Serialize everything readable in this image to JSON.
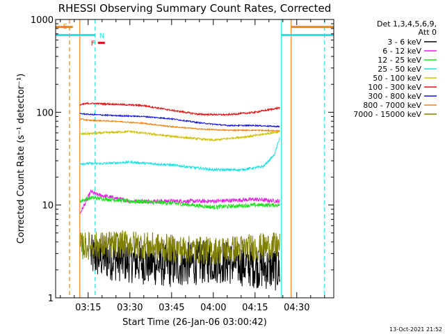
{
  "chart_data": {
    "type": "line",
    "title": "RHESSI Observing Summary Count Rates, Corrected",
    "xlabel": "Start Time (26-Jan-06 03:00:42)",
    "ylabel": "Corrected Count Rate (s⁻¹ detector⁻¹)",
    "y_scale": "log",
    "ylim": [
      1,
      1000
    ],
    "xlim_minutes": [
      3.3,
      103.3
    ],
    "y_tick_labels": [
      {
        "value": 1,
        "label": "1"
      },
      {
        "value": 10,
        "label": "10"
      },
      {
        "value": 100,
        "label": "100"
      },
      {
        "value": 1000,
        "label": "1000"
      }
    ],
    "x_tick_labels": [
      {
        "minute": 15,
        "label": "03:15"
      },
      {
        "minute": 30,
        "label": "03:30"
      },
      {
        "minute": 45,
        "label": "03:45"
      },
      {
        "minute": 60,
        "label": "04:00"
      },
      {
        "minute": 75,
        "label": "04:15"
      },
      {
        "minute": 90,
        "label": "04:30"
      }
    ],
    "legend": {
      "header": [
        "Det 1,3,4,5,6,9,",
        "Att 0"
      ],
      "placement": "right",
      "items": [
        {
          "label": "3 - 6 keV",
          "color": "#000000"
        },
        {
          "label": "6 - 12 keV",
          "color": "#e020e0"
        },
        {
          "label": "12 - 25 keV",
          "color": "#20e020"
        },
        {
          "label": "25 - 50 keV",
          "color": "#20e0e0"
        },
        {
          "label": "50 - 100 keV",
          "color": "#d0c000"
        },
        {
          "label": "100 - 300 keV",
          "color": "#e01010"
        },
        {
          "label": "300 - 800 keV",
          "color": "#1010e0"
        },
        {
          "label": "800 - 7000 keV",
          "color": "#f08010"
        },
        {
          "label": "7000 - 15000 keV",
          "color": "#808000"
        }
      ]
    },
    "series": [
      {
        "name": "3 - 6 keV",
        "color": "#000000",
        "noise": 0.55,
        "x": [
          16,
          30,
          45,
          60,
          75,
          84
        ],
        "y": [
          2.8,
          2.5,
          2.2,
          2.5,
          2.2,
          2.0
        ]
      },
      {
        "name": "6 - 12 keV",
        "color": "#e020e0",
        "noise": 0.05,
        "x": [
          12,
          16,
          18,
          30,
          45,
          60,
          75,
          84
        ],
        "y": [
          8,
          14,
          13,
          11,
          11,
          11,
          11.5,
          11
        ]
      },
      {
        "name": "12 - 25 keV",
        "color": "#20e020",
        "noise": 0.05,
        "x": [
          12,
          16,
          30,
          45,
          60,
          75,
          84
        ],
        "y": [
          11,
          12,
          11,
          10.5,
          9.5,
          10,
          10
        ]
      },
      {
        "name": "25 - 50 keV",
        "color": "#20e0e0",
        "noise": 0.03,
        "x": [
          12,
          20,
          30,
          45,
          60,
          70,
          78,
          82,
          84
        ],
        "y": [
          28,
          28,
          29,
          27,
          24,
          24,
          26,
          35,
          55
        ]
      },
      {
        "name": "50 - 100 keV",
        "color": "#d0c000",
        "noise": 0.025,
        "x": [
          12,
          20,
          30,
          45,
          60,
          75,
          84
        ],
        "y": [
          58,
          60,
          62,
          55,
          50,
          56,
          62
        ]
      },
      {
        "name": "100 - 300 keV",
        "color": "#e01010",
        "noise": 0.02,
        "x": [
          12,
          15,
          25,
          35,
          45,
          55,
          65,
          75,
          84
        ],
        "y": [
          120,
          125,
          122,
          118,
          105,
          95,
          94,
          100,
          112
        ]
      },
      {
        "name": "300 - 800 keV",
        "color": "#1010e0",
        "noise": 0.015,
        "x": [
          12,
          15,
          25,
          35,
          45,
          55,
          65,
          75,
          84
        ],
        "y": [
          97,
          95,
          92,
          90,
          85,
          77,
          72,
          72,
          70
        ]
      },
      {
        "name": "800 - 7000 keV",
        "color": "#f08010",
        "noise": 0.015,
        "x": [
          12,
          15,
          25,
          35,
          45,
          55,
          65,
          75,
          84
        ],
        "y": [
          85,
          82,
          80,
          76,
          70,
          66,
          64,
          64,
          63
        ]
      },
      {
        "name": "7000 - 15000 keV",
        "color": "#808000",
        "noise": 0.35,
        "x": [
          12,
          30,
          45,
          60,
          75,
          84
        ],
        "y": [
          3.6,
          3.8,
          3.4,
          3.2,
          3.5,
          3.6
        ]
      }
    ],
    "vertical_markers": [
      {
        "minute": 8.3,
        "color": "#f08010",
        "style": "dashed"
      },
      {
        "minute": 12,
        "color": "#f08010",
        "style": "solid"
      },
      {
        "minute": 17.5,
        "color": "#20e0e0",
        "style": "dashed"
      },
      {
        "minute": 84.5,
        "color": "#20e0e0",
        "style": "solid"
      },
      {
        "minute": 88,
        "color": "#f08010",
        "style": "solid"
      },
      {
        "minute": 100,
        "color": "#20e0e0",
        "style": "dashed"
      }
    ],
    "top_bars": [
      {
        "label": "S",
        "color": "#f08010",
        "from": 3.3,
        "to": 9.5,
        "value": 830
      },
      {
        "label": "",
        "color": "#20e0e0",
        "from": 3.3,
        "to": 17.5,
        "value": 680
      },
      {
        "label": "N",
        "color": "#20e0e0",
        "from": 17.5,
        "to": 17.5,
        "value": 680
      },
      {
        "label": "F",
        "color": "#e01010",
        "from": 18.5,
        "to": 21,
        "value": 560
      },
      {
        "label": "",
        "color": "#f08010",
        "from": 88,
        "to": 103.3,
        "value": 830
      },
      {
        "label": "",
        "color": "#20e0e0",
        "from": 84.5,
        "to": 103.3,
        "value": 680
      }
    ],
    "footer_date": "13-Oct-2021 21:52"
  }
}
